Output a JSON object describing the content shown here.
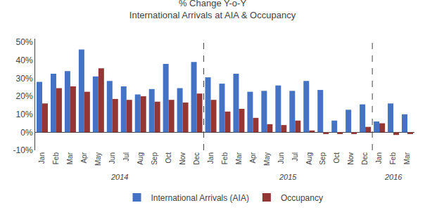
{
  "chart_data": {
    "type": "bar",
    "title": "% Change Y-o-Y",
    "subtitle": "International Arrivals at AIA & Occupancy",
    "categories": [
      "Jan",
      "Feb",
      "Mar",
      "Apr",
      "May",
      "Jun",
      "Jul",
      "Aug",
      "Sep",
      "Oct",
      "Nov",
      "Dec",
      "Jan",
      "Feb",
      "Mar",
      "Apr",
      "May",
      "Jun",
      "Jul",
      "Aug",
      "Sep",
      "Oct",
      "Nov",
      "Dec",
      "Jan",
      "Feb",
      "Mar"
    ],
    "series": [
      {
        "name": "International Arrivals (AIA)",
        "color": "#4472C4",
        "values": [
          28,
          32.5,
          34,
          46,
          31,
          28.5,
          25.5,
          21,
          24,
          38,
          24.5,
          39,
          30.5,
          27,
          32.5,
          22.5,
          23,
          26,
          23,
          28.5,
          23.5,
          6.5,
          12.5,
          15.5,
          6,
          16,
          10
        ]
      },
      {
        "name": "Occupancy",
        "color": "#943634",
        "values": [
          16,
          24.5,
          25.5,
          22.5,
          35.5,
          18.5,
          18,
          20,
          17,
          18,
          16.5,
          21.5,
          18,
          11.5,
          13,
          8,
          4.5,
          4,
          6.5,
          1,
          -1,
          -1,
          -1,
          3,
          5,
          -1.5,
          -1
        ]
      }
    ],
    "ylim": [
      -10,
      52
    ],
    "yticks": [
      {
        "value": -10,
        "label": "-10%"
      },
      {
        "value": 0,
        "label": "0%"
      },
      {
        "value": 10,
        "label": "10%"
      },
      {
        "value": 20,
        "label": "20%"
      },
      {
        "value": 30,
        "label": "30%"
      },
      {
        "value": 40,
        "label": "40%"
      },
      {
        "value": 50,
        "label": "50%"
      }
    ],
    "annotations": [
      "2014",
      "2015",
      "2016"
    ],
    "grid": false,
    "legend": "bottom"
  }
}
